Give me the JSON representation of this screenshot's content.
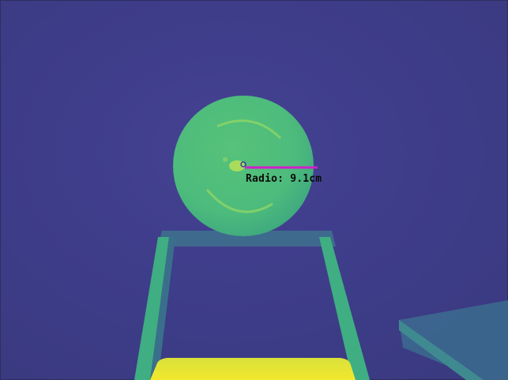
{
  "measurement": {
    "label": "Radio:",
    "value": "9.1cm"
  },
  "colors": {
    "background": "#3f3f8a",
    "sphere": "#4fc07a",
    "radius_line": "#d020c8",
    "stand": "#3fae82",
    "base": "#e6e535",
    "label_text": "#0a0a0a"
  }
}
